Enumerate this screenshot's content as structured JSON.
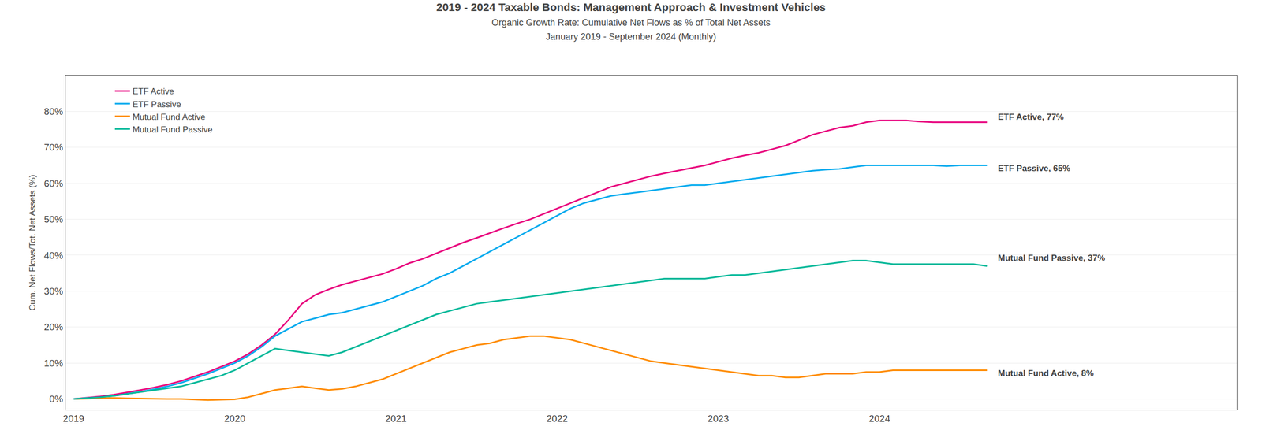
{
  "chart_data": {
    "type": "line",
    "title": "2019 - 2024 Taxable Bonds: Management Approach & Investment Vehicles",
    "subtitle": [
      "Organic Growth Rate: Cumulative Net Flows as % of Total Net Assets",
      "January 2019 - September 2024 (Monthly)"
    ],
    "ylabel": "Cum. Net Flows/Tot. Net Assets (%)",
    "x": [
      2019,
      2019.0833333333,
      2019.1666666667,
      2019.25,
      2019.3333333333,
      2019.4166666667,
      2019.5,
      2019.5833333333,
      2019.6666666667,
      2019.75,
      2019.8333333333,
      2019.9166666667,
      2020,
      2020.0833333333,
      2020.1666666667,
      2020.25,
      2020.3333333333,
      2020.4166666667,
      2020.5,
      2020.5833333333,
      2020.6666666667,
      2020.75,
      2020.8333333333,
      2020.9166666667,
      2021,
      2021.0833333333,
      2021.1666666667,
      2021.25,
      2021.3333333333,
      2021.4166666667,
      2021.5,
      2021.5833333333,
      2021.6666666667,
      2021.75,
      2021.8333333333,
      2021.9166666667,
      2022,
      2022.0833333333,
      2022.1666666667,
      2022.25,
      2022.3333333333,
      2022.4166666667,
      2022.5,
      2022.5833333333,
      2022.6666666667,
      2022.75,
      2022.8333333333,
      2022.9166666667,
      2023,
      2023.0833333333,
      2023.1666666667,
      2023.25,
      2023.3333333333,
      2023.4166666667,
      2023.5,
      2023.5833333333,
      2023.6666666667,
      2023.75,
      2023.8333333333,
      2023.9166666667,
      2024,
      2024.0833333333,
      2024.1666666667,
      2024.25,
      2024.3333333333,
      2024.4166666667,
      2024.5,
      2024.5833333333,
      2024.6666666667
    ],
    "series": [
      {
        "name": "ETF Active",
        "color": "#e8007d",
        "values": [
          0.0,
          0.3,
          0.7,
          1.2,
          1.8,
          2.5,
          3.2,
          4.0,
          5.0,
          6.2,
          7.5,
          9.0,
          10.5,
          12.5,
          15.0,
          18.0,
          22.0,
          26.5,
          29.0,
          30.5,
          31.8,
          32.8,
          33.8,
          34.8,
          36.2,
          37.8,
          39.0,
          40.5,
          42.0,
          43.5,
          44.8,
          46.2,
          47.5,
          48.8,
          50.0,
          51.5,
          53.0,
          54.5,
          56.0,
          57.5,
          59.0,
          60.0,
          61.0,
          62.0,
          62.8,
          63.5,
          64.2,
          65.0,
          66.0,
          67.0,
          67.8,
          68.5,
          69.5,
          70.5,
          72.0,
          73.5,
          74.5,
          75.5,
          76.0,
          77.0,
          77.5,
          77.5,
          77.5,
          77.2,
          77.0,
          77.0,
          77.0,
          77.0,
          77.0
        ]
      },
      {
        "name": "ETF Passive",
        "color": "#00aaee",
        "values": [
          0.0,
          0.2,
          0.5,
          0.9,
          1.4,
          2.0,
          2.7,
          3.5,
          4.5,
          5.7,
          7.0,
          8.5,
          10.0,
          12.0,
          14.5,
          17.5,
          19.5,
          21.5,
          22.5,
          23.5,
          24.0,
          25.0,
          26.0,
          27.0,
          28.5,
          30.0,
          31.5,
          33.5,
          35.0,
          37.0,
          39.0,
          41.0,
          43.0,
          45.0,
          47.0,
          49.0,
          51.0,
          53.0,
          54.5,
          55.5,
          56.5,
          57.0,
          57.5,
          58.0,
          58.5,
          59.0,
          59.5,
          59.5,
          60.0,
          60.5,
          61.0,
          61.5,
          62.0,
          62.5,
          63.0,
          63.5,
          63.8,
          64.0,
          64.5,
          65.0,
          65.0,
          65.0,
          65.0,
          65.0,
          65.0,
          64.8,
          65.0,
          65.0,
          65.0
        ]
      },
      {
        "name": "Mutual Fund Active",
        "color": "#ff8c00",
        "values": [
          0.0,
          0.1,
          0.2,
          0.3,
          0.2,
          0.1,
          0.1,
          0.0,
          0.0,
          -0.2,
          -0.3,
          -0.2,
          -0.1,
          0.5,
          1.5,
          2.5,
          3.0,
          3.5,
          3.0,
          2.5,
          2.8,
          3.5,
          4.5,
          5.5,
          7.0,
          8.5,
          10.0,
          11.5,
          13.0,
          14.0,
          15.0,
          15.5,
          16.5,
          17.0,
          17.5,
          17.5,
          17.0,
          16.5,
          15.5,
          14.5,
          13.5,
          12.5,
          11.5,
          10.5,
          10.0,
          9.5,
          9.0,
          8.5,
          8.0,
          7.5,
          7.0,
          6.5,
          6.5,
          6.0,
          6.0,
          6.5,
          7.0,
          7.0,
          7.0,
          7.5,
          7.5,
          8.0,
          8.0,
          8.0,
          8.0,
          8.0,
          8.0,
          8.0,
          8.0
        ]
      },
      {
        "name": "Mutual Fund Passive",
        "color": "#00b899",
        "values": [
          0.0,
          0.2,
          0.5,
          0.9,
          1.4,
          2.0,
          2.5,
          3.0,
          3.5,
          4.5,
          5.5,
          6.5,
          8.0,
          10.0,
          12.0,
          14.0,
          13.5,
          13.0,
          12.5,
          12.0,
          13.0,
          14.5,
          16.0,
          17.5,
          19.0,
          20.5,
          22.0,
          23.5,
          24.5,
          25.5,
          26.5,
          27.0,
          27.5,
          28.0,
          28.5,
          29.0,
          29.5,
          30.0,
          30.5,
          31.0,
          31.5,
          32.0,
          32.5,
          33.0,
          33.5,
          33.5,
          33.5,
          33.5,
          34.0,
          34.5,
          34.5,
          35.0,
          35.5,
          36.0,
          36.5,
          37.0,
          37.5,
          38.0,
          38.5,
          38.5,
          38.0,
          37.5,
          37.5,
          37.5,
          37.5,
          37.5,
          37.5,
          37.5,
          37.0
        ]
      }
    ],
    "annotations": [
      {
        "text": "ETF Active, 77%",
        "x": 2024.6666666667,
        "y": 77.0
      },
      {
        "text": "ETF Passive, 65%",
        "x": 2024.6666666667,
        "y": 65.0
      },
      {
        "text": "Mutual Fund Passive, 37%",
        "x": 2024.6666666667,
        "y": 37.0
      },
      {
        "text": "Mutual Fund Active, 8%",
        "x": 2024.6666666667,
        "y": 8.0
      }
    ],
    "xlim": [
      2018.95,
      2026.2166666667
    ],
    "xticks": [
      2019,
      2020,
      2021,
      2022,
      2023,
      2024
    ],
    "ylim": [
      -3,
      90
    ],
    "yticks": [
      {
        "value": 0,
        "label": "0%"
      },
      {
        "value": 10,
        "label": "10%"
      },
      {
        "value": 20,
        "label": "20%"
      },
      {
        "value": 30,
        "label": "30%"
      },
      {
        "value": 40,
        "label": "40%"
      },
      {
        "value": 50,
        "label": "50%"
      },
      {
        "value": 60,
        "label": "60%"
      },
      {
        "value": 70,
        "label": "70%"
      },
      {
        "value": 80,
        "label": "80%"
      }
    ],
    "grid": "y",
    "legend": "upper left"
  }
}
